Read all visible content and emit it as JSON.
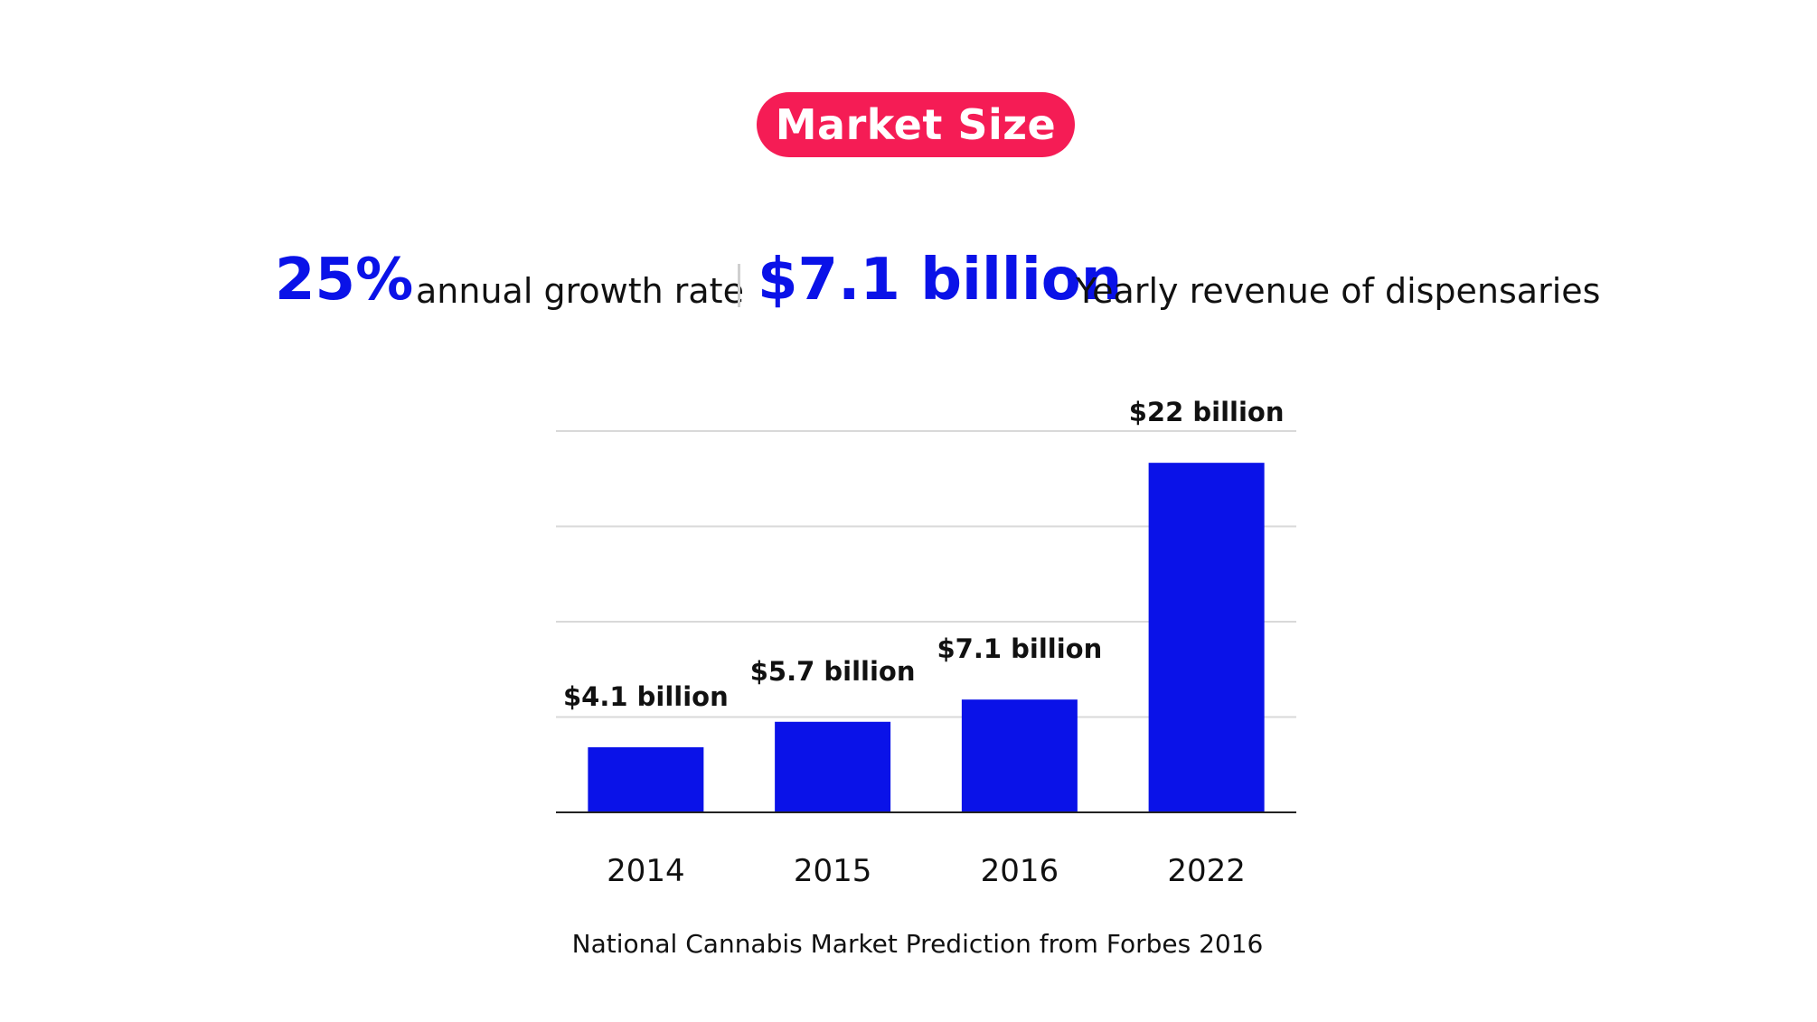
{
  "header": {
    "badge_label": "Market Size",
    "badge_color": "#f51c55"
  },
  "stats": {
    "growth_value": "25%",
    "growth_label": "annual growth rate",
    "revenue_value": "$7.1 billion",
    "revenue_label": "Yearly revenue of dispensaries",
    "accent_color": "#0a12e8"
  },
  "chart_data": {
    "type": "bar",
    "categories": [
      "2014",
      "2015",
      "2016",
      "2022"
    ],
    "values": [
      4.1,
      5.7,
      7.1,
      22
    ],
    "data_labels": [
      "$4.1 billion",
      "$5.7 billion",
      "$7.1 billion",
      "$22 billion"
    ],
    "title": "",
    "xlabel": "",
    "ylabel": "",
    "ylim": [
      0,
      24
    ],
    "grid": true,
    "bar_color": "#0a12e8"
  },
  "caption": "National Cannabis Market Prediction from Forbes 2016"
}
